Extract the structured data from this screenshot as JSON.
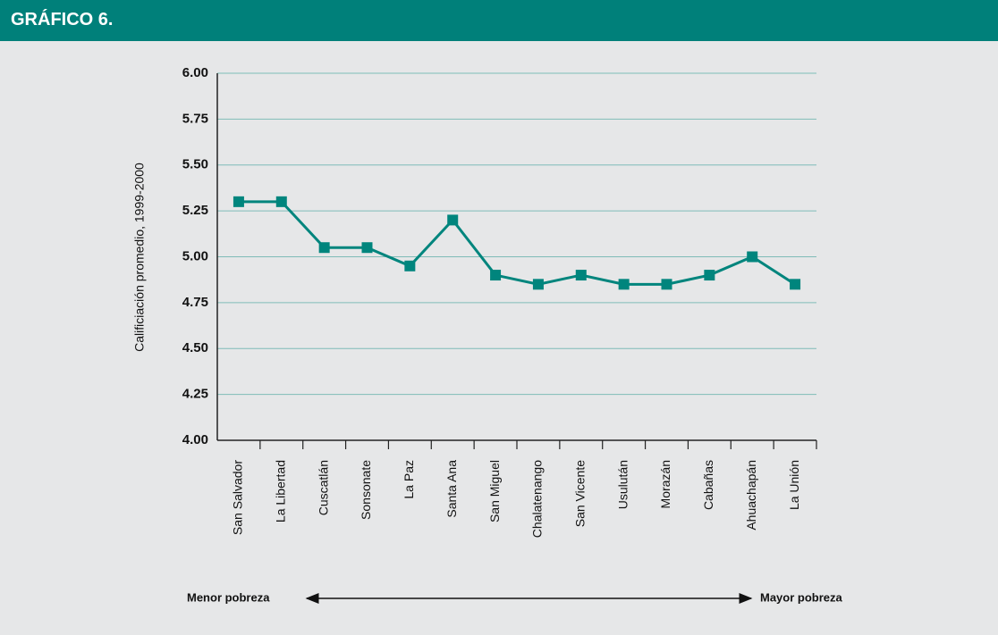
{
  "header": {
    "title": "GRÁFICO 6."
  },
  "chart_data": {
    "type": "line",
    "ylabel": "Calificiación promedio, 1999-2000",
    "categories": [
      "San Salvador",
      "La Libertad",
      "Cuscatlán",
      "Sonsonate",
      "La Paz",
      "Santa Ana",
      "San Miguel",
      "Chalatenango",
      "San Vicente",
      "Usulután",
      "Morazán",
      "Cabañas",
      "Ahuachapán",
      "La Unión"
    ],
    "series": [
      {
        "color": "#00857d",
        "values": [
          5.3,
          5.3,
          5.05,
          5.05,
          4.95,
          5.2,
          4.9,
          4.85,
          4.9,
          4.85,
          4.85,
          4.9,
          5.0,
          4.85
        ]
      }
    ],
    "ylim": [
      4,
      6
    ],
    "yticks": [
      {
        "value": 4,
        "label": "4.00"
      },
      {
        "value": 4.25,
        "label": "4.25"
      },
      {
        "value": 4.5,
        "label": "4.50"
      },
      {
        "value": 4.75,
        "label": "4.75"
      },
      {
        "value": 5,
        "label": "5.00"
      },
      {
        "value": 5.25,
        "label": "5.25"
      },
      {
        "value": 5.5,
        "label": "5.50"
      },
      {
        "value": 5.75,
        "label": "5.75"
      },
      {
        "value": 6,
        "label": "6.00"
      }
    ],
    "grid": true,
    "annotations": {
      "left": "Menor pobreza",
      "right": "Mayor pobreza"
    }
  }
}
